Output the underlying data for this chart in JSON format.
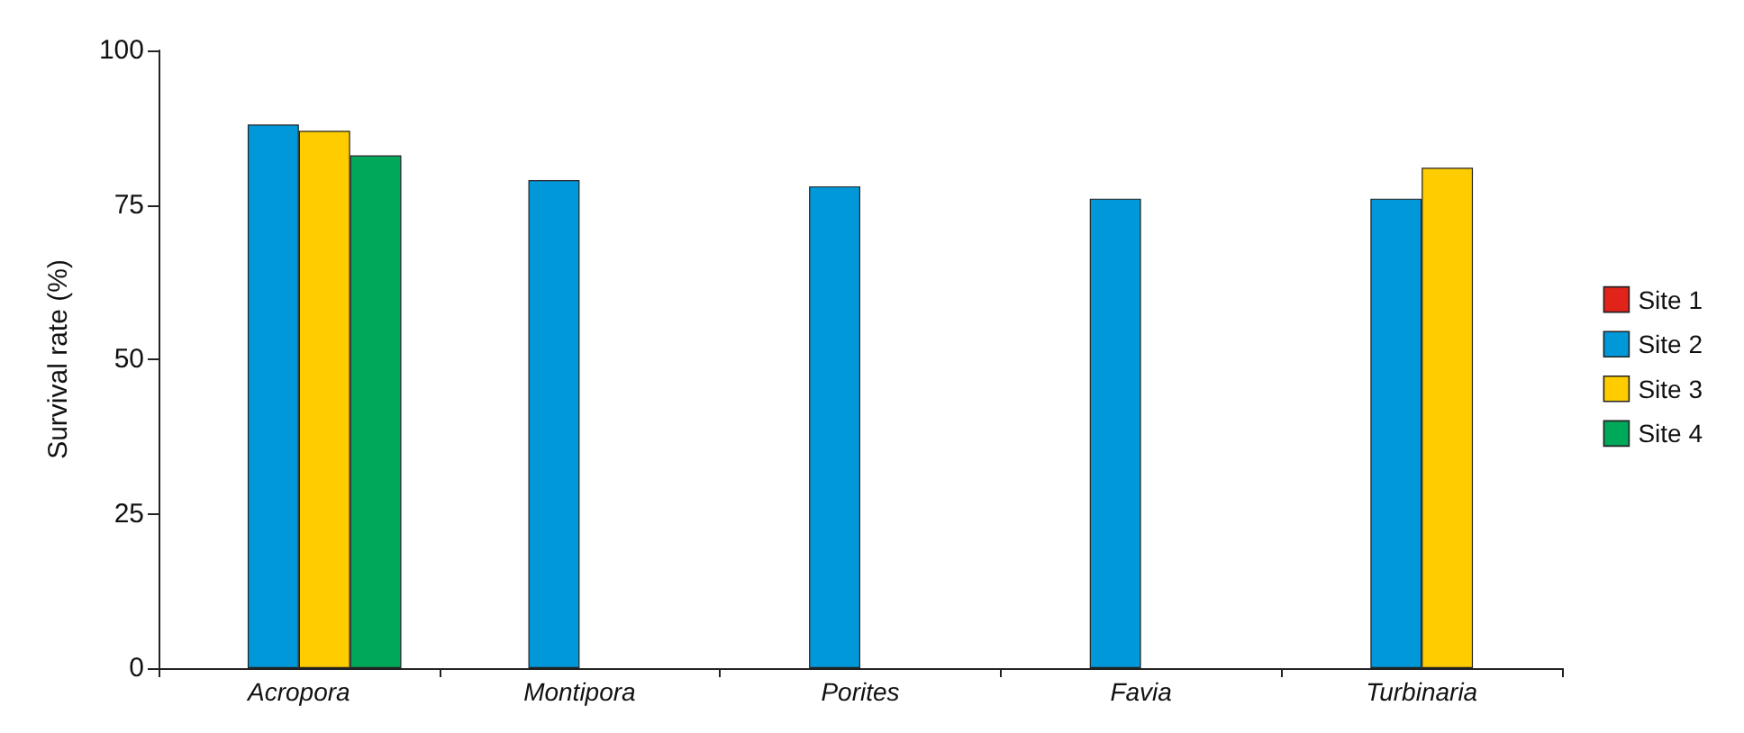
{
  "chart_data": {
    "type": "bar",
    "ylabel": "Survival rate (%)",
    "categories": [
      "Acropora",
      "Montipora",
      "Porites",
      "Favia",
      "Turbinaria"
    ],
    "series": [
      {
        "name": "Site 1",
        "color": "#e2231a",
        "values": [
          null,
          null,
          null,
          null,
          null
        ]
      },
      {
        "name": "Site 2",
        "color": "#0098d8",
        "values": [
          88,
          79,
          78,
          76,
          76
        ]
      },
      {
        "name": "Site 3",
        "color": "#ffcc00",
        "values": [
          87,
          null,
          null,
          null,
          81
        ]
      },
      {
        "name": "Site 4",
        "color": "#00a85a",
        "values": [
          83,
          null,
          null,
          null,
          null
        ]
      }
    ],
    "ylim": [
      0,
      100
    ],
    "yticks": [
      0,
      25,
      50,
      75,
      100
    ],
    "grid": false,
    "legend": "right"
  }
}
